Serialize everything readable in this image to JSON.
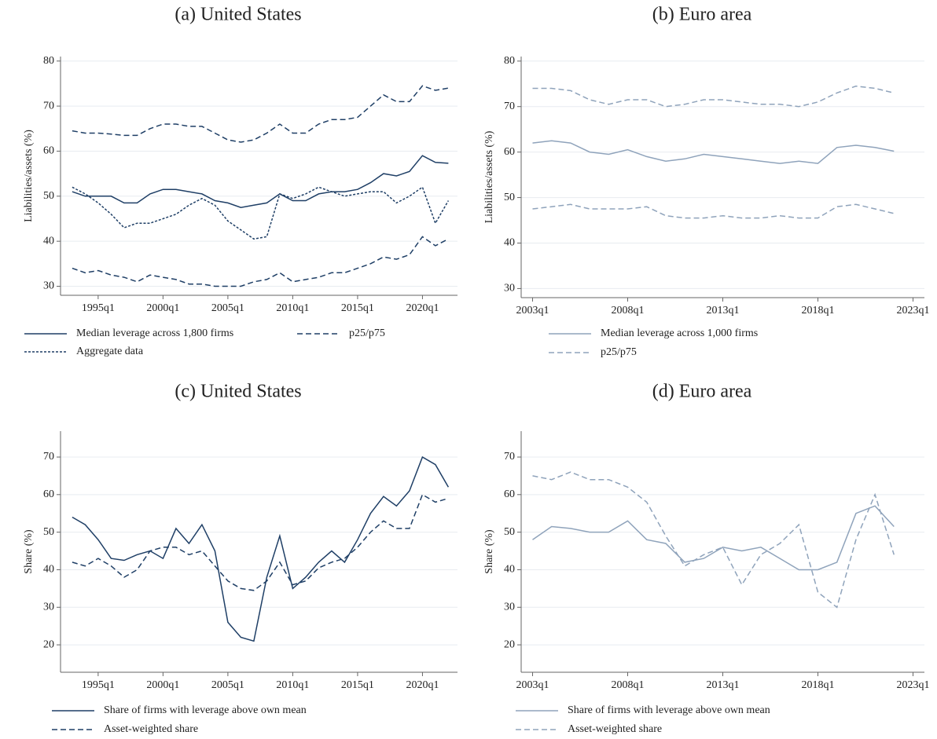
{
  "chart_data": [
    {
      "type": "line",
      "title": "(a) United States",
      "ylabel": "Liabilities/assets (%)",
      "x": [
        1993,
        1994,
        1995,
        1996,
        1997,
        1998,
        1999,
        2000,
        2001,
        2002,
        2003,
        2004,
        2005,
        2006,
        2007,
        2008,
        2009,
        2010,
        2011,
        2012,
        2013,
        2014,
        2015,
        2016,
        2017,
        2018,
        2019,
        2020,
        2021,
        2022
      ],
      "xlim": [
        1992.1,
        2022.7
      ],
      "xticks": [
        {
          "value": 1995,
          "label": "1995q1"
        },
        {
          "value": 2000,
          "label": "2000q1"
        },
        {
          "value": 2005,
          "label": "2005q1"
        },
        {
          "value": 2010,
          "label": "2010q1"
        },
        {
          "value": 2015,
          "label": "2015q1"
        },
        {
          "value": 2020,
          "label": "2020q1"
        }
      ],
      "ylim": [
        28,
        81
      ],
      "yticks": [
        30,
        40,
        50,
        60,
        70,
        80
      ],
      "grid": true,
      "series": [
        {
          "name": "Median leverage across 1,800 firms",
          "color": "#1f3f66",
          "dash": "solid",
          "values": [
            51,
            50,
            50,
            50,
            48.5,
            48.5,
            50.5,
            51.5,
            51.5,
            51,
            50.5,
            49,
            48.5,
            47.5,
            48,
            48.5,
            50.5,
            49,
            49,
            50.5,
            51,
            51,
            51.5,
            53,
            55,
            54.5,
            55.5,
            59,
            57.5,
            57.3
          ]
        },
        {
          "name": "p25/p75",
          "color": "#1f3f66",
          "dash": "dashed",
          "values": [
            64.5,
            64,
            64,
            63.8,
            63.5,
            63.5,
            65,
            66,
            66,
            65.5,
            65.5,
            64,
            62.5,
            62,
            62.5,
            64,
            66,
            64,
            64,
            66,
            67,
            67,
            67.5,
            70,
            72.5,
            71,
            71,
            74.5,
            73.5,
            74
          ]
        },
        {
          "name": null,
          "color": "#1f3f66",
          "dash": "dashed",
          "values": [
            34,
            33,
            33.5,
            32.5,
            32,
            31,
            32.5,
            32,
            31.5,
            30.5,
            30.5,
            30,
            30,
            30,
            31,
            31.5,
            33,
            31,
            31.5,
            32,
            33,
            33,
            34,
            35,
            36.5,
            36,
            37,
            41,
            39,
            40.5
          ]
        },
        {
          "name": "Aggregate data",
          "color": "#1f3f66",
          "dash": "dotted",
          "values": [
            52,
            50.5,
            48.5,
            46,
            43,
            44,
            44,
            45,
            46,
            48,
            49.5,
            48,
            44.5,
            42.5,
            40.5,
            41,
            50.5,
            49.5,
            50.5,
            52,
            51,
            50,
            50.5,
            51,
            51,
            48.5,
            50,
            52,
            44,
            49
          ]
        }
      ]
    },
    {
      "type": "line",
      "title": "(b) Euro area",
      "ylabel": "Liabilities/assets (%)",
      "x": [
        2003,
        2004,
        2005,
        2006,
        2007,
        2008,
        2009,
        2010,
        2011,
        2012,
        2013,
        2014,
        2015,
        2016,
        2017,
        2018,
        2019,
        2020,
        2021,
        2022
      ],
      "xlim": [
        2002.4,
        2023.6
      ],
      "xticks": [
        {
          "value": 2003,
          "label": "2003q1"
        },
        {
          "value": 2008,
          "label": "2008q1"
        },
        {
          "value": 2013,
          "label": "2013q1"
        },
        {
          "value": 2018,
          "label": "2018q1"
        },
        {
          "value": 2023,
          "label": "2023q1"
        }
      ],
      "ylim": [
        28,
        81
      ],
      "yticks": [
        30,
        40,
        50,
        60,
        70,
        80
      ],
      "grid": true,
      "series": [
        {
          "name": "Median leverage across 1,000 firms",
          "color": "#8fa3bb",
          "dash": "solid",
          "values": [
            62,
            62.5,
            62,
            60,
            59.5,
            60.5,
            59,
            58,
            58.5,
            59.5,
            59,
            58.5,
            58,
            57.5,
            58,
            57.5,
            61,
            61.5,
            61,
            60.2
          ]
        },
        {
          "name": "p25/p75",
          "color": "#8fa3bb",
          "dash": "dashed",
          "values": [
            74,
            74,
            73.5,
            71.5,
            70.5,
            71.5,
            71.5,
            70,
            70.5,
            71.5,
            71.5,
            71,
            70.5,
            70.5,
            70,
            71,
            73,
            74.5,
            74,
            73
          ]
        },
        {
          "name": null,
          "color": "#8fa3bb",
          "dash": "dashed",
          "values": [
            47.5,
            48,
            48.5,
            47.5,
            47.5,
            47.5,
            48,
            46,
            45.5,
            45.5,
            46,
            45.5,
            45.5,
            46,
            45.5,
            45.5,
            48,
            48.5,
            47.5,
            46.5
          ]
        }
      ]
    },
    {
      "type": "line",
      "title": "(c) United States",
      "ylabel": "Share (%)",
      "x": [
        1993,
        1994,
        1995,
        1996,
        1997,
        1998,
        1999,
        2000,
        2001,
        2002,
        2003,
        2004,
        2005,
        2006,
        2007,
        2008,
        2009,
        2010,
        2011,
        2012,
        2013,
        2014,
        2015,
        2016,
        2017,
        2018,
        2019,
        2020,
        2021,
        2022
      ],
      "xlim": [
        1992.1,
        2022.7
      ],
      "xticks": [
        {
          "value": 1995,
          "label": "1995q1"
        },
        {
          "value": 2000,
          "label": "2000q1"
        },
        {
          "value": 2005,
          "label": "2005q1"
        },
        {
          "value": 2010,
          "label": "2010q1"
        },
        {
          "value": 2015,
          "label": "2015q1"
        },
        {
          "value": 2020,
          "label": "2020q1"
        }
      ],
      "ylim": [
        12.7,
        76.9
      ],
      "yticks": [
        20,
        30,
        40,
        50,
        60,
        70
      ],
      "grid": true,
      "series": [
        {
          "name": "Share of firms with leverage above own mean",
          "color": "#1f3f66",
          "dash": "solid",
          "values": [
            54,
            52,
            48,
            43,
            42.5,
            44,
            45,
            43,
            51,
            47,
            52,
            45,
            26,
            22,
            21,
            38,
            49,
            35,
            38,
            42,
            45,
            42,
            48,
            55,
            59.5,
            57,
            61,
            70,
            68,
            62
          ]
        },
        {
          "name": "Asset-weighted share",
          "color": "#1f3f66",
          "dash": "dashed",
          "values": [
            42,
            41,
            43,
            41,
            38,
            40,
            45,
            46,
            46,
            44,
            45,
            41,
            37,
            35,
            34.5,
            37,
            42,
            36,
            37,
            40.5,
            42,
            43,
            46,
            50,
            53,
            51,
            51,
            60,
            58,
            59
          ]
        }
      ]
    },
    {
      "type": "line",
      "title": "(d) Euro area",
      "ylabel": "Share (%)",
      "x": [
        2003,
        2004,
        2005,
        2006,
        2007,
        2008,
        2009,
        2010,
        2011,
        2012,
        2013,
        2014,
        2015,
        2016,
        2017,
        2018,
        2019,
        2020,
        2021,
        2022
      ],
      "xlim": [
        2002.4,
        2023.6
      ],
      "xticks": [
        {
          "value": 2003,
          "label": "2003q1"
        },
        {
          "value": 2008,
          "label": "2008q1"
        },
        {
          "value": 2013,
          "label": "2013q1"
        },
        {
          "value": 2018,
          "label": "2018q1"
        },
        {
          "value": 2023,
          "label": "2023q1"
        }
      ],
      "ylim": [
        12.7,
        76.9
      ],
      "yticks": [
        20,
        30,
        40,
        50,
        60,
        70
      ],
      "grid": true,
      "series": [
        {
          "name": "Share of firms with leverage above own mean",
          "color": "#8fa3bb",
          "dash": "solid",
          "values": [
            48,
            51.5,
            51,
            50,
            50,
            53,
            48,
            47,
            42,
            43,
            46,
            45,
            46,
            43,
            40,
            40,
            42,
            55,
            57,
            51.5
          ]
        },
        {
          "name": "Asset-weighted share",
          "color": "#8fa3bb",
          "dash": "dashed",
          "values": [
            65,
            64,
            66,
            64,
            64,
            62,
            58,
            49,
            41,
            44,
            46,
            36,
            44,
            47,
            52,
            34,
            30,
            48,
            60,
            44
          ]
        }
      ]
    }
  ]
}
